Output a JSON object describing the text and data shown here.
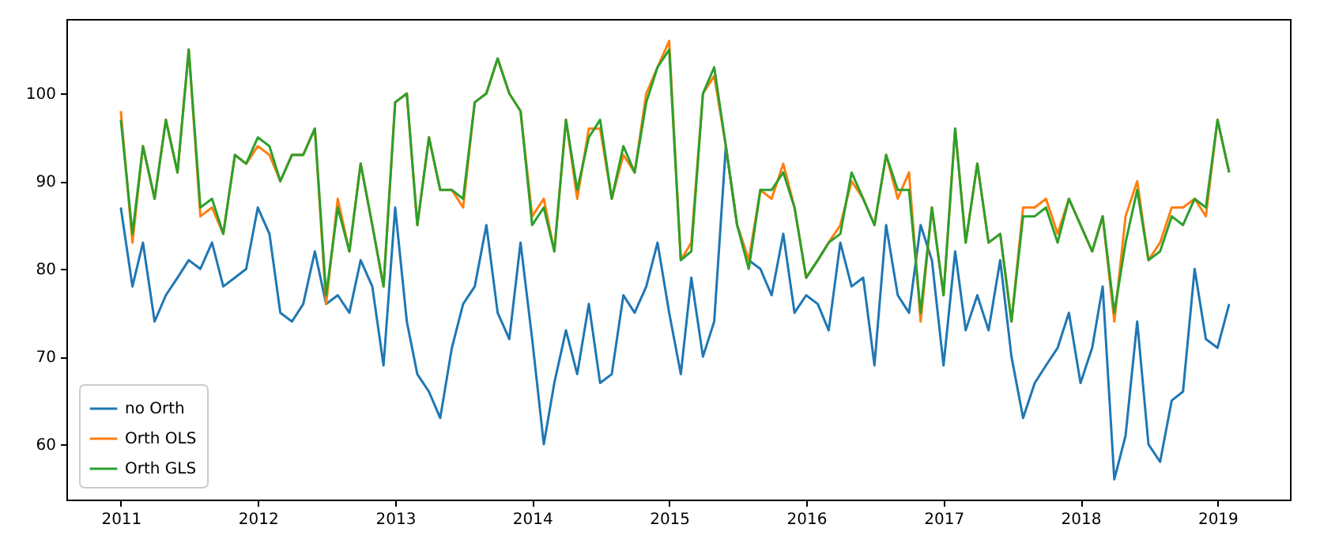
{
  "chart_data": {
    "type": "line",
    "x": [
      "2011-01",
      "2011-02",
      "2011-03",
      "2011-04",
      "2011-05",
      "2011-06",
      "2011-07",
      "2011-08",
      "2011-09",
      "2011-10",
      "2011-11",
      "2011-12",
      "2012-01",
      "2012-02",
      "2012-03",
      "2012-04",
      "2012-05",
      "2012-06",
      "2012-07",
      "2012-08",
      "2012-09",
      "2012-10",
      "2012-11",
      "2012-12",
      "2013-01",
      "2013-02",
      "2013-03",
      "2013-04",
      "2013-05",
      "2013-06",
      "2013-07",
      "2013-08",
      "2013-09",
      "2013-10",
      "2013-11",
      "2013-12",
      "2014-01",
      "2014-02",
      "2014-03",
      "2014-04",
      "2014-05",
      "2014-06",
      "2014-07",
      "2014-08",
      "2014-09",
      "2014-10",
      "2014-11",
      "2014-12",
      "2015-01",
      "2015-02",
      "2015-03",
      "2015-04",
      "2015-05",
      "2015-06",
      "2015-07",
      "2015-08",
      "2015-09",
      "2015-10",
      "2015-11",
      "2015-12",
      "2016-01",
      "2016-02",
      "2016-03",
      "2016-04",
      "2016-05",
      "2016-06",
      "2016-07",
      "2016-08",
      "2016-09",
      "2016-10",
      "2016-11",
      "2016-12",
      "2017-01",
      "2017-02",
      "2017-03",
      "2017-04",
      "2017-05",
      "2017-06",
      "2017-07",
      "2017-08",
      "2017-09",
      "2017-10",
      "2017-11",
      "2017-12",
      "2018-01",
      "2018-02",
      "2018-03",
      "2018-04",
      "2018-05",
      "2018-06",
      "2018-07",
      "2018-08",
      "2018-09",
      "2018-10",
      "2018-11",
      "2018-12",
      "2019-01",
      "2019-02"
    ],
    "series": [
      {
        "name": "no Orth",
        "color": "#1f77b4",
        "values": [
          87,
          78,
          83,
          74,
          77,
          79,
          81,
          80,
          83,
          78,
          79,
          80,
          87,
          84,
          75,
          74,
          76,
          82,
          76,
          77,
          75,
          81,
          78,
          69,
          87,
          74,
          68,
          66,
          63,
          71,
          76,
          78,
          85,
          75,
          72,
          83,
          72,
          60,
          67,
          73,
          68,
          76,
          67,
          68,
          77,
          75,
          78,
          83,
          75,
          68,
          79,
          70,
          74,
          94,
          85,
          81,
          80,
          77,
          84,
          75,
          77,
          76,
          73,
          83,
          78,
          79,
          69,
          85,
          77,
          75,
          85,
          81,
          69,
          82,
          73,
          77,
          73,
          81,
          70,
          63,
          67,
          69,
          71,
          75,
          67,
          71,
          78,
          56,
          61,
          74,
          60,
          58,
          65,
          66,
          80,
          72,
          71,
          76
        ]
      },
      {
        "name": "Orth OLS",
        "color": "#ff7f0e",
        "values": [
          98,
          83,
          94,
          88,
          97,
          91,
          105,
          86,
          87,
          84,
          93,
          92,
          94,
          93,
          90,
          93,
          93,
          96,
          76,
          88,
          82,
          92,
          85,
          78,
          99,
          100,
          85,
          95,
          89,
          89,
          87,
          99,
          100,
          104,
          100,
          98,
          86,
          88,
          82,
          97,
          88,
          96,
          96,
          88,
          93,
          91,
          100,
          103,
          106,
          81,
          83,
          100,
          102,
          94,
          85,
          81,
          89,
          88,
          92,
          87,
          79,
          81,
          83,
          85,
          90,
          88,
          85,
          93,
          88,
          91,
          74,
          87,
          77,
          96,
          83,
          92,
          83,
          84,
          74,
          87,
          87,
          88,
          84,
          88,
          85,
          82,
          86,
          74,
          86,
          90,
          81,
          83,
          87,
          87,
          88,
          86,
          97,
          91
        ]
      },
      {
        "name": "Orth GLS",
        "color": "#2ca02c",
        "values": [
          97,
          84,
          94,
          88,
          97,
          91,
          105,
          87,
          88,
          84,
          93,
          92,
          95,
          94,
          90,
          93,
          93,
          96,
          77,
          87,
          82,
          92,
          85,
          78,
          99,
          100,
          85,
          95,
          89,
          89,
          88,
          99,
          100,
          104,
          100,
          98,
          85,
          87,
          82,
          97,
          89,
          95,
          97,
          88,
          94,
          91,
          99,
          103,
          105,
          81,
          82,
          100,
          103,
          94,
          85,
          80,
          89,
          89,
          91,
          87,
          79,
          81,
          83,
          84,
          91,
          88,
          85,
          93,
          89,
          89,
          75,
          87,
          77,
          96,
          83,
          92,
          83,
          84,
          74,
          86,
          86,
          87,
          83,
          88,
          85,
          82,
          86,
          75,
          83,
          89,
          81,
          82,
          86,
          85,
          88,
          87,
          97,
          91
        ]
      }
    ],
    "xlim": [
      "2010-08-09",
      "2019-07-13"
    ],
    "xticks": [
      {
        "value": "2011",
        "label": "2011"
      },
      {
        "value": "2012",
        "label": "2012"
      },
      {
        "value": "2013",
        "label": "2013"
      },
      {
        "value": "2014",
        "label": "2014"
      },
      {
        "value": "2015",
        "label": "2015"
      },
      {
        "value": "2016",
        "label": "2016"
      },
      {
        "value": "2017",
        "label": "2017"
      },
      {
        "value": "2018",
        "label": "2018"
      },
      {
        "value": "2019",
        "label": "2019"
      }
    ],
    "ylim": [
      53.7,
      108.5
    ],
    "yticks": [
      60,
      70,
      80,
      90,
      100
    ],
    "legend": "bottom left",
    "grid": false,
    "line_style": "solid"
  }
}
